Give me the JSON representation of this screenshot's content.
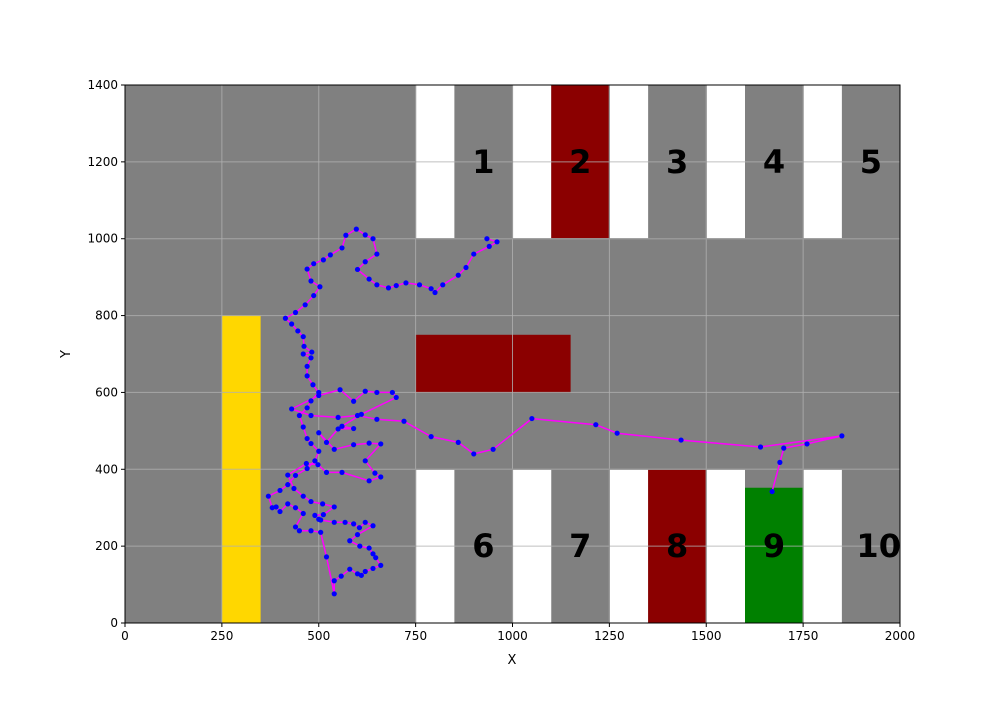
{
  "chart_data": {
    "type": "scatter",
    "title": "",
    "xlabel": "X",
    "ylabel": "Y",
    "xlim": [
      0,
      2000
    ],
    "ylim": [
      0,
      1400
    ],
    "xticks": [
      0,
      250,
      500,
      750,
      1000,
      1250,
      1500,
      1750,
      2000
    ],
    "yticks": [
      0,
      200,
      400,
      600,
      800,
      1000,
      1200,
      1400
    ],
    "grid": true,
    "colors": {
      "floor": "#808080",
      "empty_bay": "#ffffff",
      "occupied": "#8b0000",
      "target": "#008000",
      "pillar": "#ffd700",
      "path_line": "#ff00ff",
      "path_point": "#0000ff",
      "grid": "#b0b0b0"
    },
    "regions": [
      {
        "x0": 0,
        "x1": 2000,
        "y0": 0,
        "y1": 1400,
        "color": "floor"
      },
      {
        "x0": 750,
        "x1": 850,
        "y0": 1000,
        "y1": 1400,
        "color": "empty_bay"
      },
      {
        "x0": 1000,
        "x1": 1100,
        "y0": 1000,
        "y1": 1400,
        "color": "empty_bay"
      },
      {
        "x0": 1100,
        "x1": 1250,
        "y0": 1000,
        "y1": 1400,
        "color": "occupied"
      },
      {
        "x0": 1250,
        "x1": 1350,
        "y0": 1000,
        "y1": 1400,
        "color": "empty_bay"
      },
      {
        "x0": 1500,
        "x1": 1600,
        "y0": 1000,
        "y1": 1400,
        "color": "empty_bay"
      },
      {
        "x0": 1750,
        "x1": 1850,
        "y0": 1000,
        "y1": 1400,
        "color": "empty_bay"
      },
      {
        "x0": 750,
        "x1": 850,
        "y0": 0,
        "y1": 400,
        "color": "empty_bay"
      },
      {
        "x0": 1000,
        "x1": 1100,
        "y0": 0,
        "y1": 400,
        "color": "empty_bay"
      },
      {
        "x0": 1250,
        "x1": 1350,
        "y0": 0,
        "y1": 400,
        "color": "empty_bay"
      },
      {
        "x0": 1350,
        "x1": 1500,
        "y0": 0,
        "y1": 400,
        "color": "occupied"
      },
      {
        "x0": 1500,
        "x1": 1600,
        "y0": 0,
        "y1": 400,
        "color": "empty_bay"
      },
      {
        "x0": 1600,
        "x1": 1750,
        "y0": 0,
        "y1": 352,
        "color": "target"
      },
      {
        "x0": 1750,
        "x1": 1850,
        "y0": 0,
        "y1": 400,
        "color": "empty_bay"
      },
      {
        "x0": 750,
        "x1": 1150,
        "y0": 600,
        "y1": 750,
        "color": "occupied"
      },
      {
        "x0": 250,
        "x1": 350,
        "y0": 0,
        "y1": 800,
        "color": "pillar"
      }
    ],
    "dividers": [
      {
        "x0": 750,
        "x1": 2000,
        "y": 1000
      },
      {
        "x0": 750,
        "x1": 2000,
        "y": 400
      },
      {
        "x": 750,
        "y0": 1000,
        "y1": 1400
      },
      {
        "x": 1000,
        "y0": 1000,
        "y1": 1400
      },
      {
        "x": 1250,
        "y0": 1000,
        "y1": 1400
      },
      {
        "x": 1500,
        "y0": 1000,
        "y1": 1400
      },
      {
        "x": 1750,
        "y0": 1000,
        "y1": 1400
      },
      {
        "x": 750,
        "y0": 0,
        "y1": 400
      },
      {
        "x": 1000,
        "y0": 0,
        "y1": 400
      },
      {
        "x": 1250,
        "y0": 0,
        "y1": 400
      },
      {
        "x": 1500,
        "y0": 0,
        "y1": 400
      },
      {
        "x": 1750,
        "y0": 0,
        "y1": 400
      }
    ],
    "annotations": [
      {
        "text": "1",
        "x": 925,
        "y": 1195
      },
      {
        "text": "2",
        "x": 1175,
        "y": 1195
      },
      {
        "text": "3",
        "x": 1425,
        "y": 1195
      },
      {
        "text": "4",
        "x": 1675,
        "y": 1195
      },
      {
        "text": "5",
        "x": 1925,
        "y": 1195
      },
      {
        "text": "6",
        "x": 925,
        "y": 195
      },
      {
        "text": "7",
        "x": 1175,
        "y": 195
      },
      {
        "text": "8",
        "x": 1425,
        "y": 195
      },
      {
        "text": "9",
        "x": 1675,
        "y": 195
      },
      {
        "text": "10",
        "x": 1945,
        "y": 195
      }
    ],
    "series": [
      {
        "points": [
          [
            1670,
            342
          ],
          [
            1690,
            418
          ],
          [
            1700,
            455
          ],
          [
            1760,
            466
          ],
          [
            1850,
            487
          ],
          [
            1640,
            458
          ],
          [
            1435,
            476
          ],
          [
            1270,
            494
          ],
          [
            1215,
            516
          ],
          [
            1050,
            532
          ],
          [
            950,
            452
          ],
          [
            900,
            440
          ],
          [
            860,
            470
          ],
          [
            790,
            485
          ],
          [
            720,
            525
          ],
          [
            650,
            530
          ],
          [
            600,
            540
          ],
          [
            550,
            535
          ],
          [
            480,
            540
          ],
          [
            430,
            557
          ],
          [
            500,
            592
          ],
          [
            555,
            607
          ],
          [
            590,
            577
          ],
          [
            620,
            603
          ],
          [
            650,
            600
          ],
          [
            690,
            600
          ],
          [
            700,
            587
          ],
          [
            610,
            543
          ],
          [
            560,
            512
          ],
          [
            590,
            506
          ],
          [
            550,
            505
          ],
          [
            520,
            470
          ],
          [
            500,
            495
          ],
          [
            540,
            452
          ],
          [
            590,
            464
          ],
          [
            630,
            468
          ],
          [
            660,
            466
          ],
          [
            620,
            422
          ],
          [
            645,
            390
          ],
          [
            660,
            380
          ],
          [
            630,
            370
          ],
          [
            560,
            392
          ],
          [
            520,
            392
          ],
          [
            498,
            412
          ],
          [
            468,
            415
          ],
          [
            420,
            385
          ],
          [
            436,
            350
          ],
          [
            460,
            330
          ],
          [
            480,
            316
          ],
          [
            510,
            310
          ],
          [
            540,
            302
          ],
          [
            512,
            282
          ],
          [
            490,
            280
          ],
          [
            500,
            270
          ],
          [
            505,
            268
          ],
          [
            540,
            262
          ],
          [
            568,
            262
          ],
          [
            590,
            258
          ],
          [
            605,
            248
          ],
          [
            620,
            262
          ],
          [
            640,
            253
          ],
          [
            600,
            230
          ],
          [
            580,
            214
          ],
          [
            606,
            200
          ],
          [
            630,
            195
          ],
          [
            640,
            180
          ],
          [
            647,
            170
          ],
          [
            660,
            150
          ],
          [
            640,
            142
          ],
          [
            620,
            134
          ],
          [
            610,
            124
          ],
          [
            600,
            128
          ],
          [
            580,
            140
          ],
          [
            558,
            122
          ],
          [
            540,
            110
          ],
          [
            540,
            76
          ],
          [
            520,
            172
          ],
          [
            505,
            236
          ],
          [
            480,
            240
          ],
          [
            450,
            240
          ],
          [
            440,
            250
          ],
          [
            460,
            285
          ],
          [
            440,
            300
          ],
          [
            420,
            310
          ],
          [
            400,
            290
          ],
          [
            390,
            302
          ],
          [
            380,
            300
          ],
          [
            370,
            330
          ],
          [
            400,
            345
          ],
          [
            420,
            360
          ],
          [
            440,
            384
          ],
          [
            470,
            402
          ],
          [
            490,
            422
          ],
          [
            500,
            447
          ],
          [
            480,
            467
          ],
          [
            470,
            480
          ],
          [
            460,
            510
          ],
          [
            450,
            540
          ],
          [
            470,
            560
          ],
          [
            480,
            578
          ],
          [
            500,
            600
          ],
          [
            485,
            620
          ],
          [
            470,
            643
          ],
          [
            470,
            668
          ],
          [
            480,
            690
          ],
          [
            460,
            700
          ],
          [
            482,
            705
          ],
          [
            462,
            720
          ],
          [
            460,
            745
          ],
          [
            446,
            760
          ],
          [
            430,
            778
          ],
          [
            414,
            793
          ],
          [
            440,
            808
          ],
          [
            465,
            828
          ],
          [
            487,
            852
          ],
          [
            503,
            875
          ],
          [
            480,
            890
          ],
          [
            470,
            921
          ],
          [
            487,
            935
          ],
          [
            512,
            945
          ],
          [
            530,
            958
          ],
          [
            560,
            976
          ],
          [
            570,
            1009
          ],
          [
            597,
            1025
          ],
          [
            620,
            1010
          ],
          [
            640,
            1000
          ],
          [
            650,
            960
          ],
          [
            620,
            940
          ],
          [
            600,
            920
          ],
          [
            630,
            895
          ],
          [
            650,
            880
          ],
          [
            680,
            872
          ],
          [
            700,
            878
          ],
          [
            725,
            885
          ],
          [
            760,
            880
          ],
          [
            790,
            870
          ],
          [
            800,
            860
          ],
          [
            820,
            880
          ],
          [
            860,
            905
          ],
          [
            880,
            925
          ],
          [
            900,
            960
          ],
          [
            940,
            980
          ],
          [
            960,
            992
          ],
          [
            934,
            1000
          ]
        ]
      }
    ]
  }
}
